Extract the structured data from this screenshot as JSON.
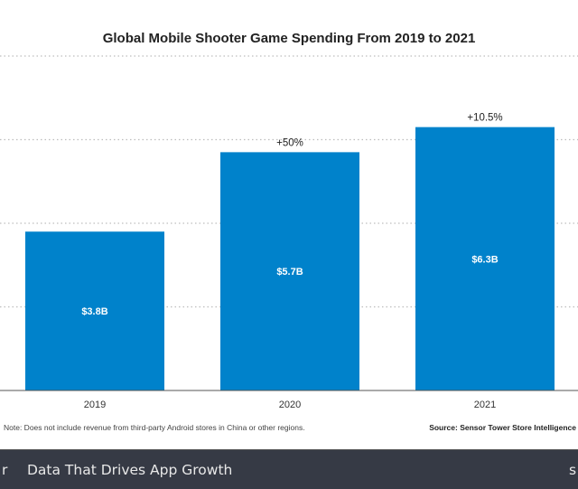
{
  "chart_data": {
    "type": "bar",
    "title": "Global Mobile Shooter Game Spending From 2019 to 2021",
    "categories": [
      "2019",
      "2020",
      "2021"
    ],
    "values": [
      3.8,
      5.7,
      6.3
    ],
    "value_labels": [
      "$3.8B",
      "$5.7B",
      "$6.3B"
    ],
    "change_labels": [
      "",
      "+50%",
      "+10.5%"
    ],
    "xlabel": "",
    "ylabel": "",
    "ylim": [
      0,
      8
    ],
    "gridlines": [
      2,
      4,
      6,
      8
    ],
    "grid": true,
    "bar_color": "#0082cb",
    "note": "Note: Does not include revenue from third-party Android stores in China or other regions.",
    "source": "Source: Sensor Tower Store Intelligence"
  },
  "footer": {
    "left_fragment": "r",
    "tagline": "Data That Drives App Growth",
    "right_fragment": "s"
  }
}
